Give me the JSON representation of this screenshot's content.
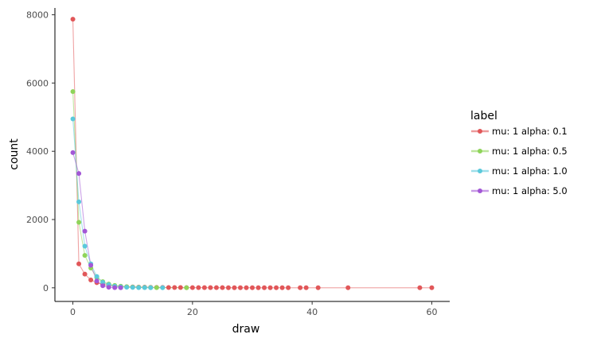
{
  "chart_data": {
    "type": "line",
    "xlabel": "draw",
    "ylabel": "count",
    "xlim": [
      -3,
      63
    ],
    "ylim": [
      -400,
      8200
    ],
    "xticks": [
      0,
      20,
      40,
      60
    ],
    "yticks": [
      0,
      2000,
      4000,
      6000,
      8000
    ],
    "grid": false,
    "legend": {
      "title": "label",
      "position": "right"
    },
    "series": [
      {
        "name": "mu: 1 alpha: 0.1",
        "color": "#e15759",
        "x": [
          0,
          1,
          2,
          3,
          4,
          5,
          6,
          7,
          8,
          9,
          10,
          11,
          12,
          13,
          14,
          15,
          16,
          17,
          18,
          19,
          20,
          21,
          22,
          23,
          24,
          25,
          26,
          27,
          28,
          29,
          30,
          31,
          32,
          33,
          34,
          35,
          36,
          38,
          39,
          41,
          46,
          58,
          60
        ],
        "y": [
          7870,
          700,
          400,
          230,
          150,
          100,
          70,
          50,
          40,
          30,
          25,
          20,
          18,
          15,
          12,
          10,
          9,
          8,
          7,
          6,
          6,
          5,
          5,
          4,
          4,
          4,
          3,
          3,
          3,
          3,
          2,
          2,
          2,
          2,
          2,
          2,
          1,
          1,
          1,
          1,
          1,
          1,
          1
        ]
      },
      {
        "name": "mu: 1 alpha: 0.5",
        "color": "#8fd45a",
        "x": [
          0,
          1,
          2,
          3,
          4,
          5,
          6,
          7,
          8,
          9,
          10,
          11,
          12,
          13,
          14,
          19
        ],
        "y": [
          5750,
          1920,
          950,
          580,
          300,
          180,
          110,
          70,
          45,
          30,
          20,
          15,
          10,
          7,
          5,
          1
        ]
      },
      {
        "name": "mu: 1 alpha: 1.0",
        "color": "#5bc9db",
        "x": [
          0,
          1,
          2,
          3,
          4,
          5,
          6,
          7,
          8,
          9,
          10,
          11,
          12,
          13,
          15
        ],
        "y": [
          4950,
          2520,
          1220,
          700,
          330,
          160,
          90,
          45,
          25,
          15,
          10,
          6,
          4,
          2,
          1
        ]
      },
      {
        "name": "mu: 1 alpha: 5.0",
        "color": "#a357d6",
        "x": [
          0,
          1,
          2,
          3,
          4,
          5,
          6,
          7,
          8
        ],
        "y": [
          3960,
          3350,
          1660,
          660,
          200,
          60,
          15,
          5,
          1
        ]
      }
    ]
  }
}
